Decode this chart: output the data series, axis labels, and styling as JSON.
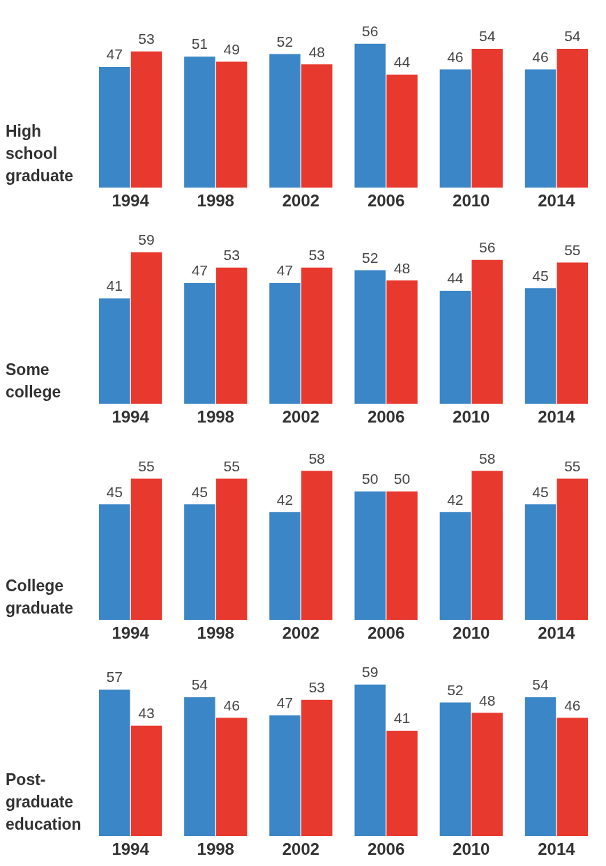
{
  "chart_data": [
    {
      "type": "bar",
      "ylabel": "High school graduate",
      "categories": [
        "1994",
        "1998",
        "2002",
        "2006",
        "2010",
        "2014"
      ],
      "tick_labels": "x",
      "data_labels": true,
      "series": [
        {
          "color": "#3b86c6",
          "values": [
            47,
            51,
            52,
            56,
            46,
            46
          ]
        },
        {
          "color": "#e8392f",
          "values": [
            53,
            49,
            48,
            44,
            54,
            54
          ]
        }
      ]
    },
    {
      "type": "bar",
      "ylabel": "Some college",
      "categories": [
        "1994",
        "1998",
        "2002",
        "2006",
        "2010",
        "2014"
      ],
      "tick_labels": "x",
      "data_labels": true,
      "series": [
        {
          "color": "#3b86c6",
          "values": [
            41,
            47,
            47,
            52,
            44,
            45
          ]
        },
        {
          "color": "#e8392f",
          "values": [
            59,
            53,
            53,
            48,
            56,
            55
          ]
        }
      ]
    },
    {
      "type": "bar",
      "ylabel": "College graduate",
      "categories": [
        "1994",
        "1998",
        "2002",
        "2006",
        "2010",
        "2014"
      ],
      "tick_labels": "x",
      "data_labels": true,
      "series": [
        {
          "color": "#3b86c6",
          "values": [
            45,
            45,
            42,
            50,
            42,
            45
          ]
        },
        {
          "color": "#e8392f",
          "values": [
            55,
            55,
            58,
            50,
            58,
            55
          ]
        }
      ]
    },
    {
      "type": "bar",
      "ylabel": "Post-graduate education",
      "categories": [
        "1994",
        "1998",
        "2002",
        "2006",
        "2010",
        "2014"
      ],
      "tick_labels": "x",
      "data_labels": true,
      "series": [
        {
          "color": "#3b86c6",
          "values": [
            57,
            54,
            47,
            59,
            52,
            54
          ]
        },
        {
          "color": "#e8392f",
          "values": [
            43,
            46,
            53,
            41,
            48,
            46
          ]
        }
      ]
    }
  ]
}
